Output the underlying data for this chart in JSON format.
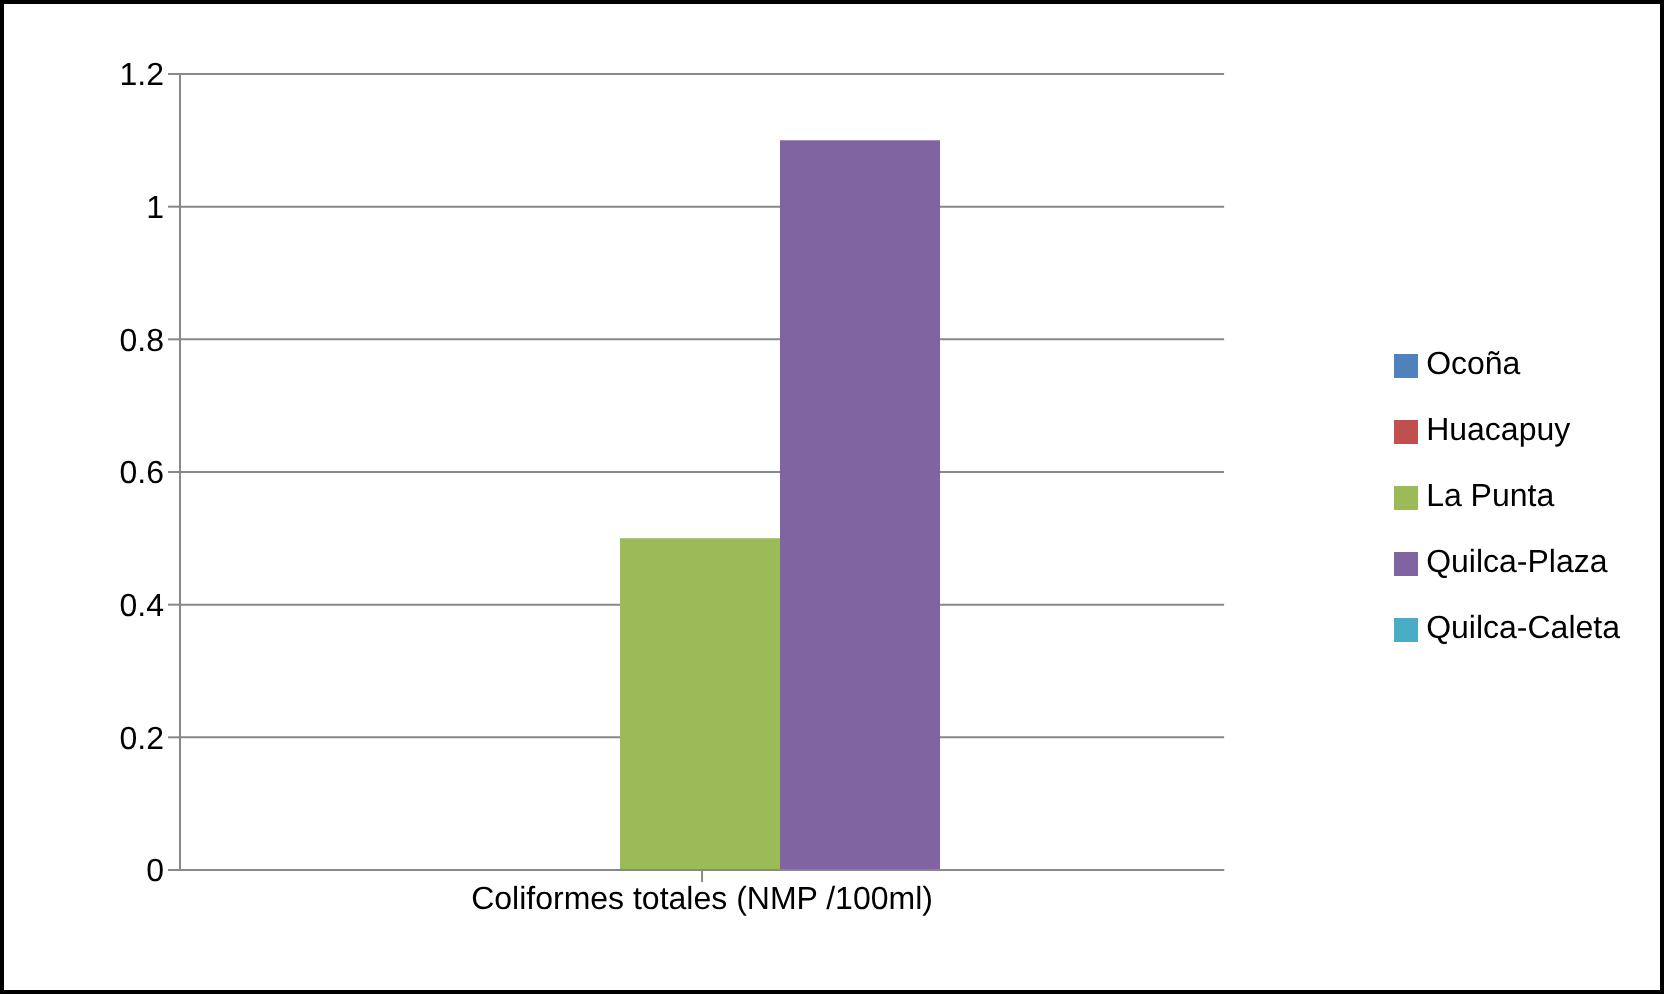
{
  "chart_data": {
    "type": "bar",
    "categories": [
      "Coliformes totales (NMP /100ml)"
    ],
    "series": [
      {
        "name": "Ocoña",
        "color": "#4f81bd",
        "values": [
          0
        ]
      },
      {
        "name": "Huacapuy",
        "color": "#c0504d",
        "values": [
          0
        ]
      },
      {
        "name": "La Punta",
        "color": "#9bbb59",
        "values": [
          0.5
        ]
      },
      {
        "name": "Quilca-Plaza",
        "color": "#8064a2",
        "values": [
          1.1
        ]
      },
      {
        "name": "Quilca-Caleta",
        "color": "#4bacc6",
        "values": [
          0
        ]
      }
    ],
    "ylim": [
      0,
      1.2
    ],
    "yticks": [
      0,
      0.2,
      0.4,
      0.6,
      0.8,
      1,
      1.2
    ],
    "grid": "y",
    "legend": "right"
  }
}
